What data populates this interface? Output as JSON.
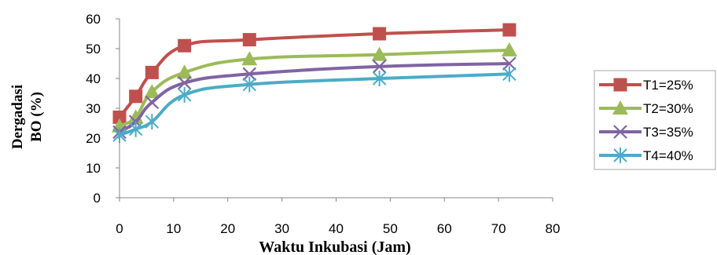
{
  "chart_data": {
    "type": "line",
    "xlabel": "Waktu Inkubasi (Jam)",
    "ylabel_lines": [
      "Dergadasi",
      "BO (%)"
    ],
    "xlim": [
      0,
      80
    ],
    "ylim": [
      0,
      60
    ],
    "x_ticks": [
      0,
      10,
      20,
      30,
      40,
      50,
      60,
      70,
      80
    ],
    "y_ticks": [
      0,
      10,
      20,
      30,
      40,
      50,
      60
    ],
    "grid": false,
    "legend_position": "right",
    "x": [
      0,
      3,
      6,
      12,
      24,
      48,
      72
    ],
    "series": [
      {
        "name": "T1=25%",
        "color": "#c0504d",
        "marker": "square",
        "values": [
          27,
          34,
          42,
          51,
          53,
          55,
          56.3
        ]
      },
      {
        "name": "T2=30%",
        "color": "#9bbb59",
        "marker": "triangle",
        "values": [
          24,
          27,
          35.5,
          42,
          46.5,
          48,
          49.5
        ]
      },
      {
        "name": "T3=35%",
        "color": "#8064a2",
        "marker": "x",
        "values": [
          22,
          25.5,
          32,
          38.5,
          41.5,
          44,
          45
        ]
      },
      {
        "name": "T4=40%",
        "color": "#4bacc6",
        "marker": "star",
        "values": [
          21,
          23,
          25.5,
          34.5,
          38,
          40,
          41.5
        ]
      }
    ]
  }
}
